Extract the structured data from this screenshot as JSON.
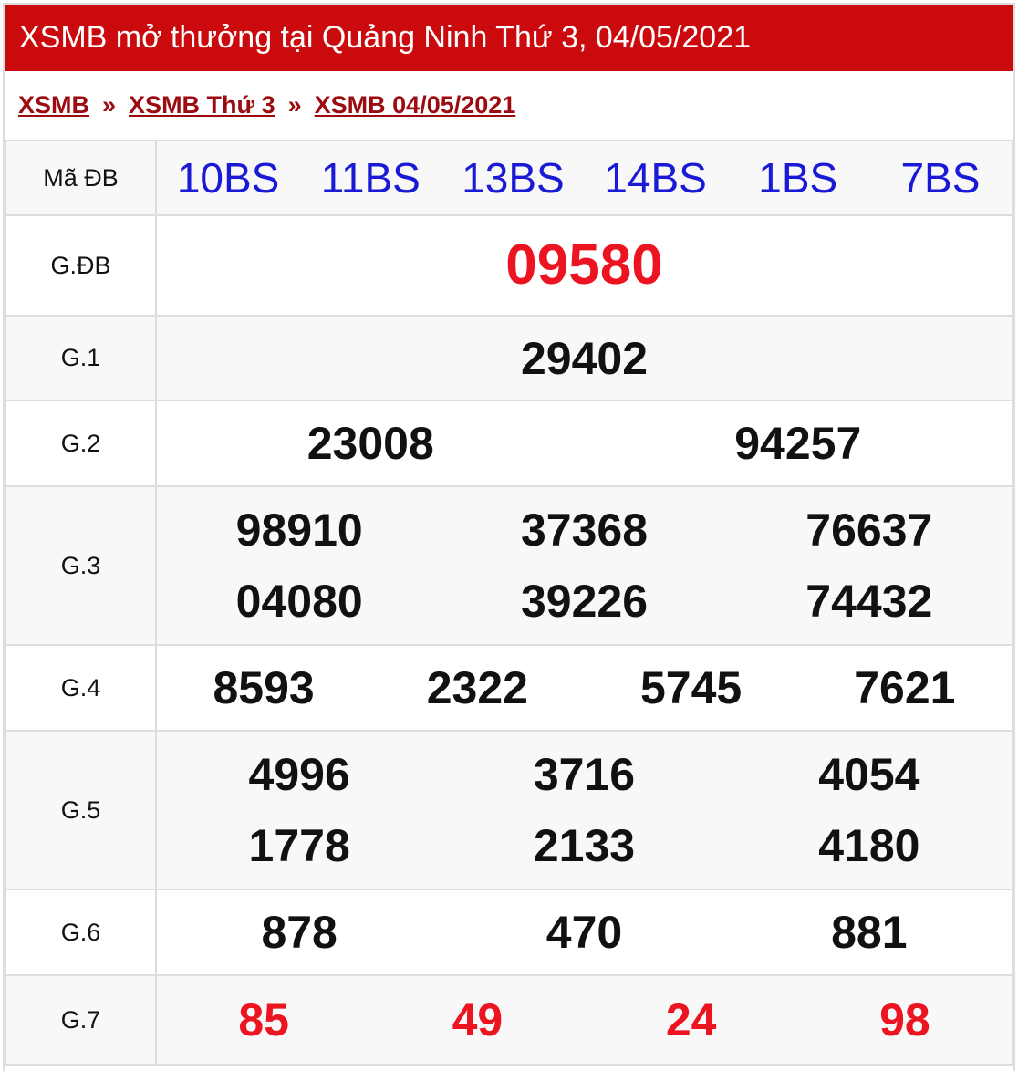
{
  "title": "XSMB mở thưởng tại Quảng Ninh Thứ 3, 04/05/2021",
  "breadcrumb": [
    {
      "label": "XSMB"
    },
    {
      "label": "XSMB Thứ 3"
    },
    {
      "label": "XSMB 04/05/2021"
    }
  ],
  "breadcrumb_sep": "»",
  "colors": {
    "header": "#cb0a0e",
    "link": "#9b0b0f",
    "code": "#1a1ad6",
    "special": "#ec1421"
  },
  "ma_db": {
    "label": "Mã ĐB",
    "codes": [
      "10BS",
      "11BS",
      "13BS",
      "14BS",
      "1BS",
      "7BS"
    ]
  },
  "prizes": [
    {
      "label": "G.ĐB",
      "rows": [
        [
          "09580"
        ]
      ]
    },
    {
      "label": "G.1",
      "rows": [
        [
          "29402"
        ]
      ]
    },
    {
      "label": "G.2",
      "rows": [
        [
          "23008",
          "94257"
        ]
      ]
    },
    {
      "label": "G.3",
      "rows": [
        [
          "98910",
          "37368",
          "76637"
        ],
        [
          "04080",
          "39226",
          "74432"
        ]
      ]
    },
    {
      "label": "G.4",
      "rows": [
        [
          "8593",
          "2322",
          "5745",
          "7621"
        ]
      ]
    },
    {
      "label": "G.5",
      "rows": [
        [
          "4996",
          "3716",
          "4054"
        ],
        [
          "1778",
          "2133",
          "4180"
        ]
      ]
    },
    {
      "label": "G.6",
      "rows": [
        [
          "878",
          "470",
          "881"
        ]
      ]
    },
    {
      "label": "G.7",
      "rows": [
        [
          "85",
          "49",
          "24",
          "98"
        ]
      ]
    }
  ]
}
